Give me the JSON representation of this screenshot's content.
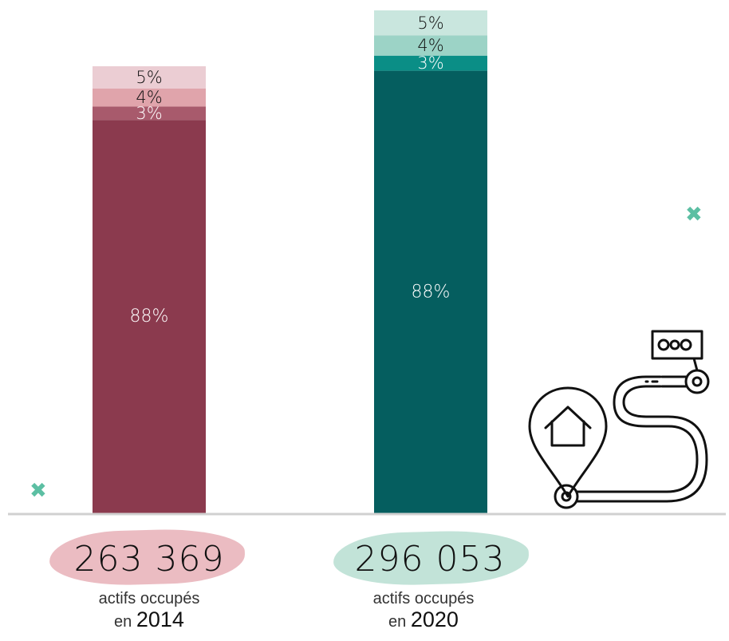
{
  "chart_data": {
    "type": "bar",
    "stacked": true,
    "categories": [
      "2014",
      "2020"
    ],
    "segments": [
      {
        "values": [
          88,
          88
        ],
        "labels": [
          "88%",
          "88%"
        ]
      },
      {
        "values": [
          3,
          3
        ],
        "labels": [
          "3%",
          "3%"
        ]
      },
      {
        "values": [
          4,
          4
        ],
        "labels": [
          "4%",
          "4%"
        ]
      },
      {
        "values": [
          5,
          5
        ],
        "labels": [
          "5%",
          "5%"
        ]
      }
    ],
    "totals": [
      {
        "value": "263 369",
        "caption": "actifs occupés",
        "year_prefix": "en",
        "year": "2014"
      },
      {
        "value": "296 053",
        "caption": "actifs occupés",
        "year_prefix": "en",
        "year": "2020"
      }
    ],
    "colors": {
      "bar_2014": [
        "#8b3a4e",
        "#a85a6c",
        "#e0a4ab",
        "#ebcdd3"
      ],
      "bar_2020": [
        "#055e5f",
        "#0a8e86",
        "#9cd3c6",
        "#c9e6de"
      ],
      "segment_label_dark_bg": "#ffffff",
      "segment_label_light_bg": "#111111",
      "brush_2014": "#ebbcc2",
      "brush_2020": "#c2e3d8",
      "x_marks": "#5cbfa3",
      "baseline": "#d0d0d0"
    }
  },
  "decor": {
    "x_mark": "✖",
    "icon": "home-to-work-path-icon"
  }
}
